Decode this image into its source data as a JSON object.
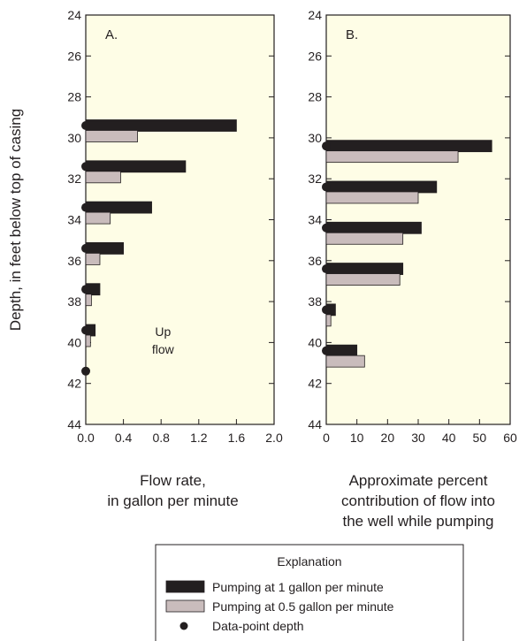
{
  "y_axis_label": "Depth, in feet below top of casing",
  "chart_data": [
    {
      "type": "bar",
      "orientation": "horizontal",
      "panel_label": "A.",
      "xlabel": [
        "Flow rate,",
        "in gallon per minute"
      ],
      "xlim": [
        0,
        2.0
      ],
      "xticks": [
        "0.0",
        "0.4",
        "0.8",
        "1.2",
        "1.6",
        "2.0"
      ],
      "ylim": [
        24,
        44
      ],
      "yticks": [
        "24",
        "26",
        "28",
        "30",
        "32",
        "34",
        "36",
        "38",
        "40",
        "42",
        "44"
      ],
      "annotation": [
        "Up",
        "flow"
      ],
      "series": [
        {
          "name": "Pumping at 1 gallon per minute",
          "depth": [
            29.4,
            31.4,
            33.4,
            35.4,
            37.4,
            39.4
          ],
          "values": [
            1.6,
            1.06,
            0.7,
            0.4,
            0.15,
            0.1
          ]
        },
        {
          "name": "Pumping at 0.5 gallon per minute",
          "depth": [
            29.4,
            31.4,
            33.4,
            35.4,
            37.4,
            39.4
          ],
          "values": [
            0.55,
            0.37,
            0.26,
            0.15,
            0.06,
            0.05
          ]
        }
      ],
      "data_points": [
        29.4,
        31.4,
        33.4,
        35.4,
        37.4,
        39.4,
        41.4
      ]
    },
    {
      "type": "bar",
      "orientation": "horizontal",
      "panel_label": "B.",
      "xlabel": [
        "Approximate percent",
        "contribution of flow into",
        "the well while pumping"
      ],
      "xlim": [
        0,
        60
      ],
      "xticks": [
        "0",
        "10",
        "20",
        "30",
        "40",
        "50",
        "60"
      ],
      "ylim": [
        24,
        44
      ],
      "yticks": [
        "24",
        "26",
        "28",
        "30",
        "32",
        "34",
        "36",
        "38",
        "40",
        "42",
        "44"
      ],
      "series": [
        {
          "name": "Pumping at 1 gallon per minute",
          "depth": [
            30.4,
            32.4,
            34.4,
            36.4,
            38.4,
            40.4
          ],
          "values": [
            54,
            36,
            31,
            25,
            3,
            10
          ]
        },
        {
          "name": "Pumping at 0.5 gallon per minute",
          "depth": [
            30.4,
            32.4,
            34.4,
            36.4,
            38.4,
            40.4
          ],
          "values": [
            43,
            30,
            25,
            24,
            1.5,
            12.5
          ]
        }
      ],
      "data_points": [
        30.4,
        32.4,
        34.4,
        36.4,
        38.4,
        40.4
      ]
    }
  ],
  "legend": {
    "title": "Explanation",
    "items": [
      {
        "label": "Pumping at 1 gallon per minute",
        "symbol": "dark-bar"
      },
      {
        "label": "Pumping at 0.5 gallon per minute",
        "symbol": "light-bar"
      },
      {
        "label": "Data-point depth",
        "symbol": "dot"
      }
    ]
  },
  "colors": {
    "plot_background": "#fefde6",
    "bar_1gpm": "#231f20",
    "bar_05gpm": "#c9bcbc",
    "axis": "#231f20"
  }
}
